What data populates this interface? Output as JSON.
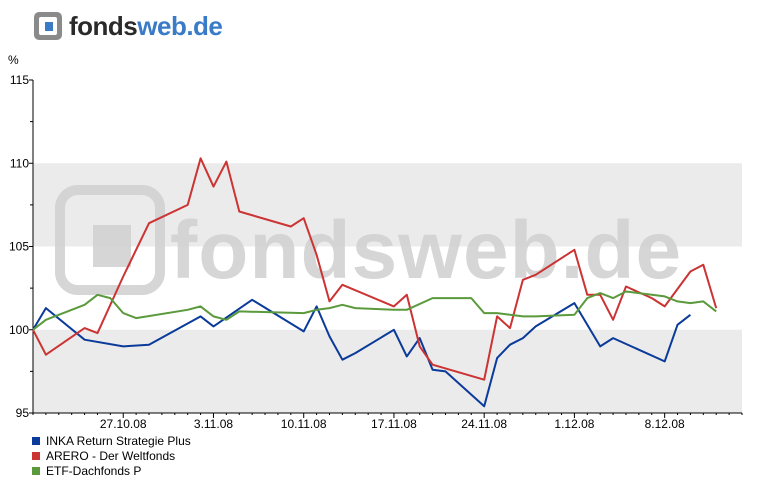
{
  "brand": {
    "name": "fonds",
    "suffix": "web.de",
    "watermark": "fondsweb.de"
  },
  "chart_data": {
    "type": "line",
    "ylabel": "%",
    "ylim": [
      95,
      115
    ],
    "yticks": [
      95,
      100,
      105,
      110,
      115
    ],
    "xlim": [
      "2008-10-20",
      "2008-12-14"
    ],
    "xticks": [
      {
        "date": "2008-10-27",
        "label": "27.10.08"
      },
      {
        "date": "2008-11-03",
        "label": "3.11.08"
      },
      {
        "date": "2008-11-10",
        "label": "10.11.08"
      },
      {
        "date": "2008-11-17",
        "label": "17.11.08"
      },
      {
        "date": "2008-11-24",
        "label": "24.11.08"
      },
      {
        "date": "2008-12-01",
        "label": "1.12.08"
      },
      {
        "date": "2008-12-08",
        "label": "8.12.08"
      }
    ],
    "grid": "alternating horizontal bands",
    "legend_position": "bottom-left",
    "series": [
      {
        "name": "INKA Return Strategie Plus",
        "color": "#0a3a9a",
        "points": [
          [
            "2008-10-20",
            100.0
          ],
          [
            "2008-10-21",
            101.3
          ],
          [
            "2008-10-24",
            99.4
          ],
          [
            "2008-10-27",
            99.0
          ],
          [
            "2008-10-29",
            99.1
          ],
          [
            "2008-11-02",
            100.8
          ],
          [
            "2008-11-03",
            100.2
          ],
          [
            "2008-11-06",
            101.8
          ],
          [
            "2008-11-10",
            99.9
          ],
          [
            "2008-11-11",
            101.4
          ],
          [
            "2008-11-12",
            99.6
          ],
          [
            "2008-11-13",
            98.2
          ],
          [
            "2008-11-14",
            98.6
          ],
          [
            "2008-11-17",
            100.0
          ],
          [
            "2008-11-18",
            98.4
          ],
          [
            "2008-11-19",
            99.5
          ],
          [
            "2008-11-20",
            97.6
          ],
          [
            "2008-11-21",
            97.5
          ],
          [
            "2008-11-24",
            95.4
          ],
          [
            "2008-11-25",
            98.3
          ],
          [
            "2008-11-26",
            99.1
          ],
          [
            "2008-11-27",
            99.5
          ],
          [
            "2008-11-28",
            100.2
          ],
          [
            "2008-12-01",
            101.6
          ],
          [
            "2008-12-03",
            99.0
          ],
          [
            "2008-12-04",
            99.5
          ],
          [
            "2008-12-08",
            98.1
          ],
          [
            "2008-12-09",
            100.3
          ],
          [
            "2008-12-10",
            100.9
          ]
        ]
      },
      {
        "name": "ARERO - Der Weltfonds",
        "color": "#cc3333",
        "points": [
          [
            "2008-10-20",
            100.0
          ],
          [
            "2008-10-21",
            98.5
          ],
          [
            "2008-10-24",
            100.1
          ],
          [
            "2008-10-25",
            99.8
          ],
          [
            "2008-10-27",
            103.2
          ],
          [
            "2008-10-29",
            106.4
          ],
          [
            "2008-11-01",
            107.5
          ],
          [
            "2008-11-02",
            110.3
          ],
          [
            "2008-11-03",
            108.6
          ],
          [
            "2008-11-04",
            110.1
          ],
          [
            "2008-11-05",
            107.1
          ],
          [
            "2008-11-09",
            106.2
          ],
          [
            "2008-11-10",
            106.7
          ],
          [
            "2008-11-11",
            104.5
          ],
          [
            "2008-11-12",
            101.7
          ],
          [
            "2008-11-13",
            102.7
          ],
          [
            "2008-11-17",
            101.4
          ],
          [
            "2008-11-18",
            102.1
          ],
          [
            "2008-11-19",
            99.0
          ],
          [
            "2008-11-20",
            97.9
          ],
          [
            "2008-11-24",
            97.0
          ],
          [
            "2008-11-25",
            100.8
          ],
          [
            "2008-11-26",
            100.1
          ],
          [
            "2008-11-27",
            103.0
          ],
          [
            "2008-11-28",
            103.3
          ],
          [
            "2008-12-01",
            104.8
          ],
          [
            "2008-12-02",
            102.1
          ],
          [
            "2008-12-03",
            102.1
          ],
          [
            "2008-12-04",
            100.6
          ],
          [
            "2008-12-05",
            102.6
          ],
          [
            "2008-12-07",
            101.9
          ],
          [
            "2008-12-08",
            101.4
          ],
          [
            "2008-12-10",
            103.5
          ],
          [
            "2008-12-11",
            103.9
          ],
          [
            "2008-12-12",
            101.3
          ]
        ]
      },
      {
        "name": "ETF-Dachfonds P",
        "color": "#5a9a3c",
        "points": [
          [
            "2008-10-20",
            100.0
          ],
          [
            "2008-10-21",
            100.6
          ],
          [
            "2008-10-24",
            101.5
          ],
          [
            "2008-10-25",
            102.1
          ],
          [
            "2008-10-26",
            101.9
          ],
          [
            "2008-10-27",
            101.0
          ],
          [
            "2008-10-28",
            100.7
          ],
          [
            "2008-11-01",
            101.2
          ],
          [
            "2008-11-02",
            101.4
          ],
          [
            "2008-11-03",
            100.8
          ],
          [
            "2008-11-04",
            100.6
          ],
          [
            "2008-11-05",
            101.1
          ],
          [
            "2008-11-10",
            101.0
          ],
          [
            "2008-11-11",
            101.2
          ],
          [
            "2008-11-12",
            101.3
          ],
          [
            "2008-11-13",
            101.5
          ],
          [
            "2008-11-14",
            101.3
          ],
          [
            "2008-11-17",
            101.2
          ],
          [
            "2008-11-18",
            101.2
          ],
          [
            "2008-11-20",
            101.9
          ],
          [
            "2008-11-23",
            101.9
          ],
          [
            "2008-11-24",
            101.0
          ],
          [
            "2008-11-25",
            101.0
          ],
          [
            "2008-11-27",
            100.8
          ],
          [
            "2008-11-28",
            100.8
          ],
          [
            "2008-12-01",
            100.9
          ],
          [
            "2008-12-02",
            101.9
          ],
          [
            "2008-12-03",
            102.2
          ],
          [
            "2008-12-04",
            101.9
          ],
          [
            "2008-12-05",
            102.3
          ],
          [
            "2008-12-07",
            102.1
          ],
          [
            "2008-12-08",
            102.0
          ],
          [
            "2008-12-09",
            101.7
          ],
          [
            "2008-12-10",
            101.6
          ],
          [
            "2008-12-11",
            101.7
          ],
          [
            "2008-12-12",
            101.1
          ]
        ]
      }
    ]
  }
}
